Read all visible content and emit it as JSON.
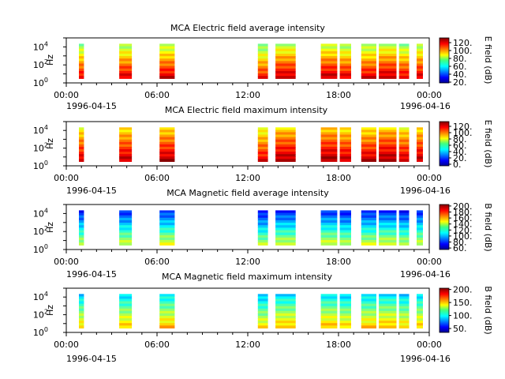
{
  "figure": {
    "background": "#ffffff"
  },
  "chart_data": [
    {
      "type": "heatmap",
      "title": "MCA  Electric field average intensity",
      "ylabel": "Hz",
      "colorbar_label": "E field (dB)",
      "colorbar_range": [
        18,
        132
      ],
      "colorbar_ticks": [
        "20.",
        "40.",
        "60.",
        "80.",
        "100.",
        "120."
      ],
      "ylim": [
        "10^0",
        "10^5"
      ],
      "y_ticks": [
        {
          "base": "10",
          "exp": "0"
        },
        {
          "base": "10",
          "exp": "2"
        },
        {
          "base": "10",
          "exp": "4"
        }
      ],
      "xlim": [
        "1996-04-15 00:00",
        "1996-04-16 00:00"
      ],
      "x_ticks": [
        "00:00",
        "06:00",
        "12:00",
        "18:00",
        "00:00"
      ],
      "x_start_date": "1996-04-15",
      "x_end_date": "1996-04-16",
      "palette": "jet",
      "top_color": "#00b8ff",
      "low_color": "#00e0c0",
      "top_level": 50,
      "bottom_level": 88,
      "intervals": [
        {
          "start": "00:50",
          "end": "01:10",
          "level": 70
        },
        {
          "start": "03:30",
          "end": "04:20",
          "level": 72
        },
        {
          "start": "06:10",
          "end": "07:10",
          "level": 70
        },
        {
          "start": "12:40",
          "end": "13:20",
          "level": 60
        },
        {
          "start": "13:50",
          "end": "15:10",
          "level": 82
        },
        {
          "start": "16:50",
          "end": "17:55",
          "level": 78
        },
        {
          "start": "18:05",
          "end": "18:50",
          "level": 76
        },
        {
          "start": "19:30",
          "end": "20:30",
          "level": 70
        },
        {
          "start": "20:40",
          "end": "21:50",
          "level": 78
        },
        {
          "start": "22:00",
          "end": "22:40",
          "level": 72
        },
        {
          "start": "23:10",
          "end": "23:35",
          "level": 74
        }
      ]
    },
    {
      "type": "heatmap",
      "title": "MCA  Electric field maximum intensity",
      "ylabel": "Hz",
      "colorbar_label": "E field (dB)",
      "colorbar_range": [
        -5,
        135
      ],
      "colorbar_ticks": [
        "0.",
        "20.",
        "40.",
        "60.",
        "80.",
        "100.",
        "120."
      ],
      "ylim": [
        "10^0",
        "10^5"
      ],
      "y_ticks": [
        {
          "base": "10",
          "exp": "0"
        },
        {
          "base": "10",
          "exp": "2"
        },
        {
          "base": "10",
          "exp": "4"
        }
      ],
      "xlim": [
        "1996-04-15 00:00",
        "1996-04-16 00:00"
      ],
      "x_ticks": [
        "00:00",
        "06:00",
        "12:00",
        "18:00",
        "00:00"
      ],
      "x_start_date": "1996-04-15",
      "x_end_date": "1996-04-16",
      "palette": "jet",
      "top_color": "#00d8c8",
      "low_color": "#40e080",
      "top_level": 60,
      "bottom_level": 90,
      "intervals": [
        {
          "start": "00:50",
          "end": "01:10",
          "level": 74
        },
        {
          "start": "03:30",
          "end": "04:20",
          "level": 76
        },
        {
          "start": "06:10",
          "end": "07:10",
          "level": 74
        },
        {
          "start": "12:40",
          "end": "13:20",
          "level": 64
        },
        {
          "start": "13:50",
          "end": "15:10",
          "level": 84
        },
        {
          "start": "16:50",
          "end": "17:55",
          "level": 82
        },
        {
          "start": "18:05",
          "end": "18:50",
          "level": 80
        },
        {
          "start": "19:30",
          "end": "20:30",
          "level": 74
        },
        {
          "start": "20:40",
          "end": "21:50",
          "level": 82
        },
        {
          "start": "22:00",
          "end": "22:40",
          "level": 76
        },
        {
          "start": "23:10",
          "end": "23:35",
          "level": 78
        }
      ]
    },
    {
      "type": "heatmap",
      "title": "MCA  Magnetic field average intensity",
      "ylabel": "Hz",
      "colorbar_label": "B field (dB)",
      "colorbar_range": [
        55,
        205
      ],
      "colorbar_ticks": [
        "60.",
        "80.",
        "100.",
        "120.",
        "140.",
        "160.",
        "180.",
        "200."
      ],
      "ylim": [
        "10^0",
        "10^5"
      ],
      "y_ticks": [
        {
          "base": "10",
          "exp": "0"
        },
        {
          "base": "10",
          "exp": "2"
        },
        {
          "base": "10",
          "exp": "4"
        }
      ],
      "xlim": [
        "1996-04-15 00:00",
        "1996-04-16 00:00"
      ],
      "x_ticks": [
        "00:00",
        "06:00",
        "12:00",
        "18:00",
        "00:00"
      ],
      "x_start_date": "1996-04-15",
      "x_end_date": "1996-04-16",
      "palette": "jet",
      "top_color": "#1050e0",
      "low_color": "#40d060",
      "top_level": 20,
      "bottom_level": 62,
      "intervals": [
        {
          "start": "00:50",
          "end": "01:10",
          "level": 44
        },
        {
          "start": "03:30",
          "end": "04:20",
          "level": 44
        },
        {
          "start": "06:10",
          "end": "07:10",
          "level": 44
        },
        {
          "start": "12:40",
          "end": "13:20",
          "level": 38
        },
        {
          "start": "13:50",
          "end": "15:10",
          "level": 44
        },
        {
          "start": "16:50",
          "end": "17:55",
          "level": 42
        },
        {
          "start": "18:05",
          "end": "18:50",
          "level": 42
        },
        {
          "start": "19:30",
          "end": "20:30",
          "level": 42
        },
        {
          "start": "20:40",
          "end": "21:50",
          "level": 42
        },
        {
          "start": "22:00",
          "end": "22:40",
          "level": 42
        },
        {
          "start": "23:10",
          "end": "23:35",
          "level": 42
        }
      ]
    },
    {
      "type": "heatmap",
      "title": "MCA  Magnetic field maximum intensity",
      "ylabel": "Hz",
      "colorbar_label": "B field (dB)",
      "colorbar_range": [
        35,
        205
      ],
      "colorbar_ticks": [
        "50.",
        "100.",
        "150.",
        "200."
      ],
      "ylim": [
        "10^0",
        "10^5"
      ],
      "y_ticks": [
        {
          "base": "10",
          "exp": "0"
        },
        {
          "base": "10",
          "exp": "2"
        },
        {
          "base": "10",
          "exp": "4"
        }
      ],
      "xlim": [
        "1996-04-15 00:00",
        "1996-04-16 00:00"
      ],
      "x_ticks": [
        "00:00",
        "06:00",
        "12:00",
        "18:00",
        "00:00"
      ],
      "x_start_date": "1996-04-15",
      "x_end_date": "1996-04-16",
      "palette": "jet",
      "top_color": "#20d0f0",
      "low_color": "#a8f040",
      "top_level": 36,
      "bottom_level": 70,
      "intervals": [
        {
          "start": "00:50",
          "end": "01:10",
          "level": 52
        },
        {
          "start": "03:30",
          "end": "04:20",
          "level": 52
        },
        {
          "start": "06:10",
          "end": "07:10",
          "level": 52
        },
        {
          "start": "12:40",
          "end": "13:20",
          "level": 44
        },
        {
          "start": "13:50",
          "end": "15:10",
          "level": 54
        },
        {
          "start": "16:50",
          "end": "17:55",
          "level": 52
        },
        {
          "start": "18:05",
          "end": "18:50",
          "level": 52
        },
        {
          "start": "19:30",
          "end": "20:30",
          "level": 52
        },
        {
          "start": "20:40",
          "end": "21:50",
          "level": 52
        },
        {
          "start": "22:00",
          "end": "22:40",
          "level": 52
        },
        {
          "start": "23:10",
          "end": "23:35",
          "level": 52
        }
      ]
    }
  ]
}
